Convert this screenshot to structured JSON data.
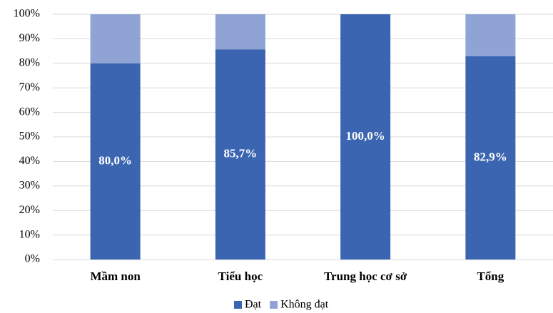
{
  "chart_data": {
    "type": "stacked_bar",
    "categories": [
      "Mầm non",
      "Tiểu học",
      "Trung học cơ sở",
      "Tổng"
    ],
    "series": [
      {
        "name": "Đạt",
        "color": "#3b64b1",
        "values": [
          80.0,
          85.7,
          100.0,
          82.9
        ],
        "value_labels": [
          "80,0%",
          "85,7%",
          "100,0%",
          "82,9%"
        ]
      },
      {
        "name": "Không đạt",
        "color": "#8fa3d5",
        "values": [
          20.0,
          14.3,
          0,
          17.1
        ]
      }
    ],
    "ylim": [
      0,
      100
    ],
    "yticks": [
      {
        "value": 0,
        "label": "0%"
      },
      {
        "value": 10,
        "label": "10%"
      },
      {
        "value": 20,
        "label": "20%"
      },
      {
        "value": 30,
        "label": "30%"
      },
      {
        "value": 40,
        "label": "40%"
      },
      {
        "value": 50,
        "label": "50%"
      },
      {
        "value": 60,
        "label": "60%"
      },
      {
        "value": 70,
        "label": "70%"
      },
      {
        "value": 80,
        "label": "80%"
      },
      {
        "value": 90,
        "label": "90%"
      },
      {
        "value": 100,
        "label": "100%"
      }
    ],
    "grid": true,
    "legend": "bottom"
  }
}
